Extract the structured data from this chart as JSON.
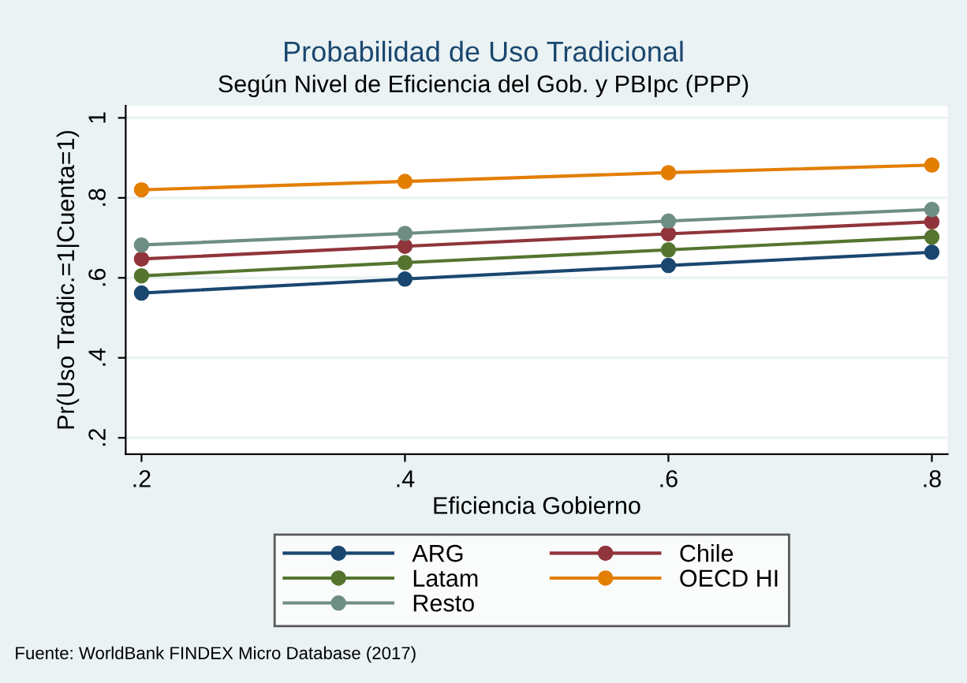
{
  "chart_data": {
    "type": "line",
    "title": "Probabilidad de Uso Tradicional",
    "subtitle": "Según Nivel de Eficiencia del Gob. y PBIpc (PPP)",
    "xlabel": "Eficiencia Gobierno",
    "ylabel": "Pr(Uso Tradic.=1|Cuenta=1)",
    "x": [
      0.2,
      0.4,
      0.6,
      0.8
    ],
    "series": [
      {
        "name": "ARG",
        "color": "#1a476f",
        "values": [
          0.562,
          0.597,
          0.631,
          0.664
        ]
      },
      {
        "name": "Chile",
        "color": "#90353b",
        "values": [
          0.647,
          0.679,
          0.71,
          0.74
        ]
      },
      {
        "name": "Latam",
        "color": "#55752f",
        "values": [
          0.605,
          0.638,
          0.67,
          0.702
        ]
      },
      {
        "name": "OECD HI",
        "color": "#e37e00",
        "values": [
          0.82,
          0.841,
          0.863,
          0.882
        ]
      },
      {
        "name": "Resto",
        "color": "#6e8e84",
        "values": [
          0.682,
          0.711,
          0.742,
          0.771
        ]
      }
    ],
    "xlim": [
      0.188,
      0.812
    ],
    "ylim": [
      0.159,
      1.03
    ],
    "xticks": [
      {
        "value": 0.2,
        "label": ".2"
      },
      {
        "value": 0.4,
        "label": ".4"
      },
      {
        "value": 0.6,
        "label": ".6"
      },
      {
        "value": 0.8,
        "label": ".8"
      }
    ],
    "yticks": [
      {
        "value": 0.2,
        "label": ".2"
      },
      {
        "value": 0.4,
        "label": ".4"
      },
      {
        "value": 0.6,
        "label": ".6"
      },
      {
        "value": 0.8,
        "label": ".8"
      },
      {
        "value": 1,
        "label": "1"
      }
    ],
    "grid": "y",
    "legend": "bottom",
    "marker": "circle",
    "line_style": "solid",
    "annotations": [
      "Fuente: WorldBank FINDEX Micro Database (2017)"
    ]
  }
}
